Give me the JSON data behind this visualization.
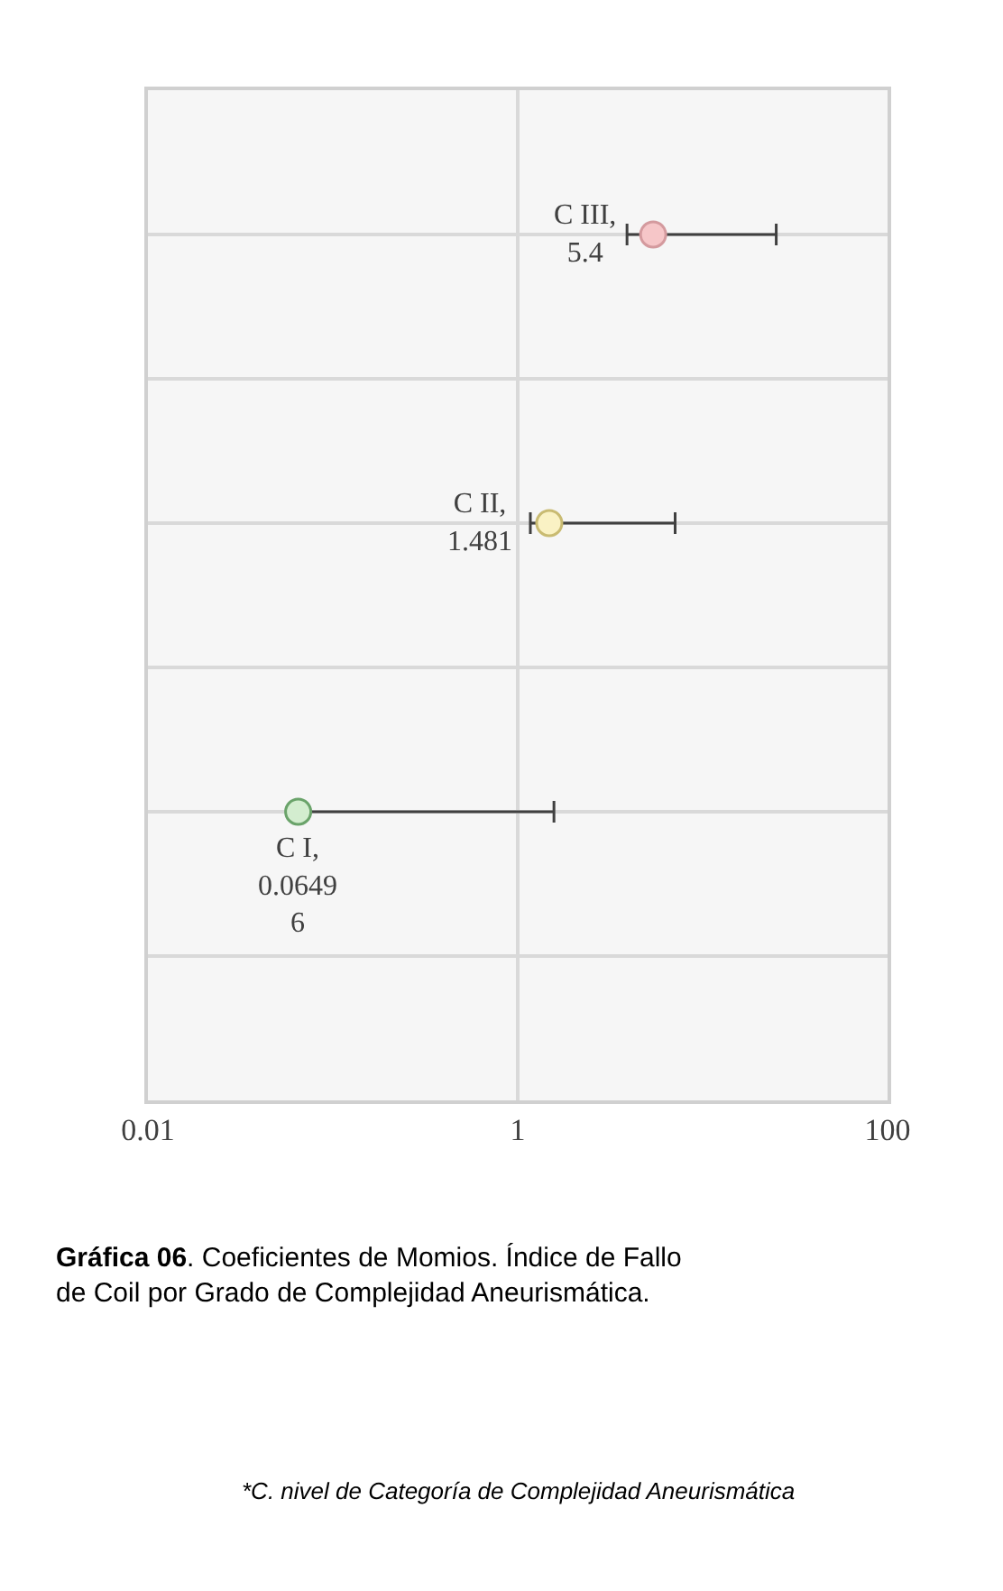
{
  "chart_data": {
    "type": "scatter",
    "orientation": "horizontal",
    "title": "Gráfica 06. Coeficientes de Momios. Índice de Fallo de Coil por Grado de Complejidad Aneurismática.",
    "categories": [
      null,
      null,
      null
    ],
    "values": [
      5.4,
      1.481,
      0.06496
    ],
    "value_labels": [
      "C III, 5.4",
      "C II, 1.481",
      "C I, 0.06496"
    ],
    "colors": [
      "#f6c6c8",
      "#faf2c4",
      "#d3edcf"
    ],
    "errors": [
      [
        3.9,
        25
      ],
      [
        1.17,
        7.1
      ],
      [
        0.06496,
        1.57
      ]
    ],
    "log": "x",
    "xlim": [
      0.01,
      100
    ],
    "xticks": [
      0.01,
      1,
      100
    ],
    "grid": true,
    "marker": "circle",
    "tick_labels": "x",
    "annotations": [
      "*C. nivel de Categoría de Complejidad Aneurismática"
    ]
  }
}
